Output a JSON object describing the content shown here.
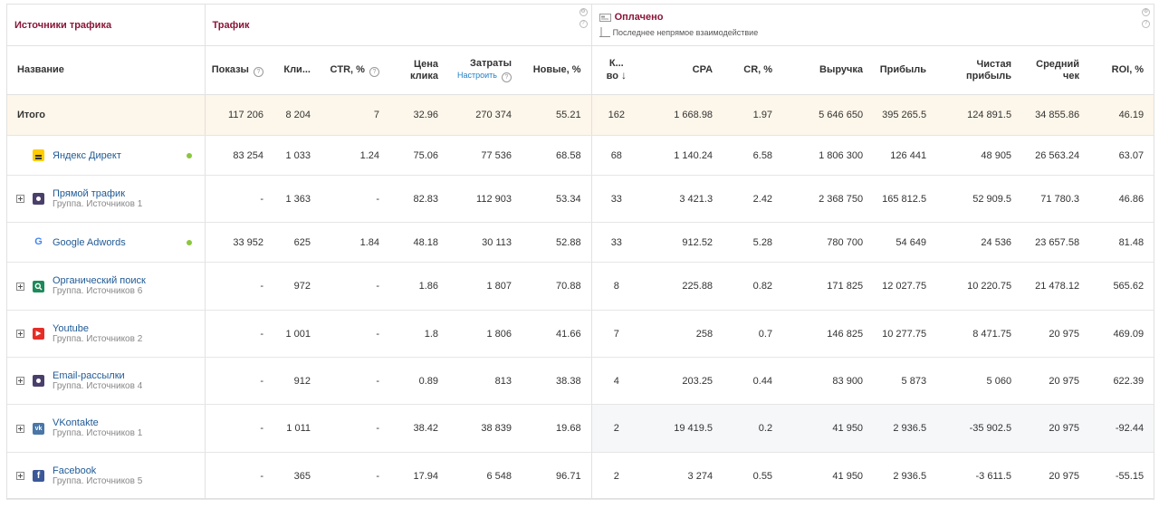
{
  "groups": {
    "sources": "Источники трафика",
    "traffic": "Трафик",
    "paid": "Оплачено",
    "paid_sub": "Последнее непрямое взаимодействие"
  },
  "columns": {
    "name": "Название",
    "shows": "Показы",
    "clicks": "Кли...",
    "ctr": "CTR, %",
    "price_1": "Цена",
    "price_2": "клика",
    "costs": "Затраты",
    "costs_link": "Настроить",
    "new": "Новые, %",
    "count_1": "К...",
    "count_2": "во",
    "cpa": "CPA",
    "cr": "CR, %",
    "revenue": "Выручка",
    "profit": "Прибыль",
    "net_1": "Чистая",
    "net_2": "прибыль",
    "avg_1": "Средний",
    "avg_2": "чек",
    "roi": "ROI, %"
  },
  "total": {
    "label": "Итого",
    "values": [
      "117 206",
      "8 204",
      "7",
      "32.96",
      "270 374",
      "55.21",
      "162",
      "1 668.98",
      "1.97",
      "5 646 650",
      "395 265.5",
      "124 891.5",
      "34 855.86",
      "46.19"
    ]
  },
  "rows": [
    {
      "name": "Яндекс Директ",
      "sub": "",
      "icon": "yandex-direct-icon",
      "values": [
        "83 254",
        "1 033",
        "1.24",
        "75.06",
        "77 536",
        "68.58",
        "68",
        "1 140.24",
        "6.58",
        "1 806 300",
        "126 441",
        "48 905",
        "26 563.24",
        "63.07"
      ]
    },
    {
      "name": "Прямой трафик",
      "sub": "Группа. Источников 1",
      "icon": "direct-traffic-icon",
      "values": [
        "-",
        "1 363",
        "-",
        "82.83",
        "112 903",
        "53.34",
        "33",
        "3 421.3",
        "2.42",
        "2 368 750",
        "165 812.5",
        "52 909.5",
        "71 780.3",
        "46.86"
      ]
    },
    {
      "name": "Google Adwords",
      "sub": "",
      "icon": "google-icon",
      "values": [
        "33 952",
        "625",
        "1.84",
        "48.18",
        "30 113",
        "52.88",
        "33",
        "912.52",
        "5.28",
        "780 700",
        "54 649",
        "24 536",
        "23 657.58",
        "81.48"
      ]
    },
    {
      "name": "Органический поиск",
      "sub": "Группа. Источников 6",
      "icon": "search-icon",
      "values": [
        "-",
        "972",
        "-",
        "1.86",
        "1 807",
        "70.88",
        "8",
        "225.88",
        "0.82",
        "171 825",
        "12 027.75",
        "10 220.75",
        "21 478.12",
        "565.62"
      ]
    },
    {
      "name": "Youtube",
      "sub": "Группа. Источников 2",
      "icon": "youtube-icon",
      "values": [
        "-",
        "1 001",
        "-",
        "1.8",
        "1 806",
        "41.66",
        "7",
        "258",
        "0.7",
        "146 825",
        "10 277.75",
        "8 471.75",
        "20 975",
        "469.09"
      ]
    },
    {
      "name": "Email-рассылки",
      "sub": "Группа. Источников 4",
      "icon": "email-icon",
      "values": [
        "-",
        "912",
        "-",
        "0.89",
        "813",
        "38.38",
        "4",
        "203.25",
        "0.44",
        "83 900",
        "5 873",
        "5 060",
        "20 975",
        "622.39"
      ]
    },
    {
      "name": "VKontakte",
      "sub": "Группа. Источников 1",
      "icon": "vk-icon",
      "values": [
        "-",
        "1 011",
        "-",
        "38.42",
        "38 839",
        "19.68",
        "2",
        "19 419.5",
        "0.2",
        "41 950",
        "2 936.5",
        "-35 902.5",
        "20 975",
        "-92.44"
      ]
    },
    {
      "name": "Facebook",
      "sub": "Группа. Источников 5",
      "icon": "facebook-icon",
      "values": [
        "-",
        "365",
        "-",
        "17.94",
        "6 548",
        "96.71",
        "2",
        "3 274",
        "0.55",
        "41 950",
        "2 936.5",
        "-3 611.5",
        "20 975",
        "-55.15"
      ]
    }
  ],
  "colors": {
    "accent": "#8a1538",
    "link": "#1f5a96",
    "total_bg": "#fdf6ea",
    "status_dot": "#8cc63f"
  }
}
